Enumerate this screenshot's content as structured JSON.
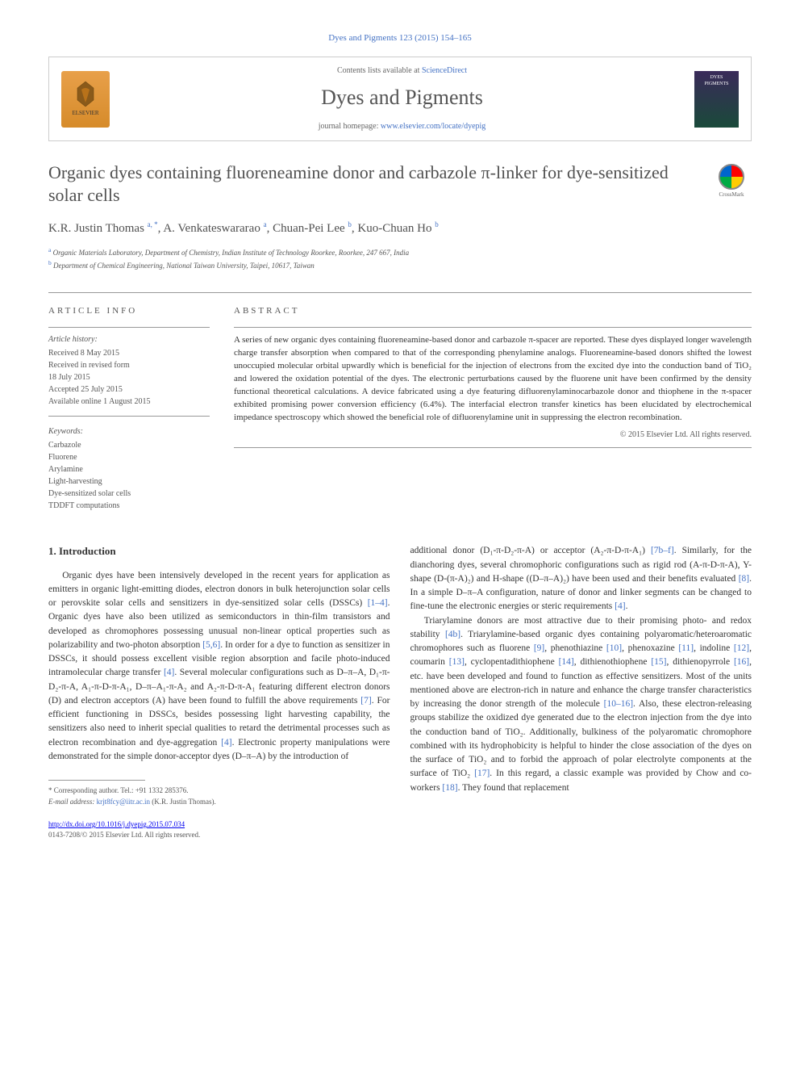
{
  "journal_ref": "Dyes and Pigments 123 (2015) 154–165",
  "header": {
    "publisher": "ELSEVIER",
    "contents_text": "Contents lists available at ",
    "contents_link": "ScienceDirect",
    "journal_name": "Dyes and Pigments",
    "homepage_text": "journal homepage: ",
    "homepage_link": "www.elsevier.com/locate/dyepig",
    "cover_label": "DYES PIGMENTS"
  },
  "article": {
    "title": "Organic dyes containing fluoreneamine donor and carbazole π-linker for dye-sensitized solar cells",
    "crossmark": "CrossMark",
    "authors_html": "K.R. Justin Thomas <sup>a, *</sup>, A. Venkateswararao <sup>a</sup>, Chuan-Pei Lee <sup>b</sup>, Kuo-Chuan Ho <sup>b</sup>",
    "affiliations": [
      {
        "sup": "a",
        "text": "Organic Materials Laboratory, Department of Chemistry, Indian Institute of Technology Roorkee, Roorkee, 247 667, India"
      },
      {
        "sup": "b",
        "text": "Department of Chemical Engineering, National Taiwan University, Taipei, 10617, Taiwan"
      }
    ]
  },
  "info": {
    "heading": "ARTICLE INFO",
    "history_label": "Article history:",
    "history": [
      "Received 8 May 2015",
      "Received in revised form",
      "18 July 2015",
      "Accepted 25 July 2015",
      "Available online 1 August 2015"
    ],
    "keywords_label": "Keywords:",
    "keywords": [
      "Carbazole",
      "Fluorene",
      "Arylamine",
      "Light-harvesting",
      "Dye-sensitized solar cells",
      "TDDFT computations"
    ]
  },
  "abstract": {
    "heading": "ABSTRACT",
    "text": "A series of new organic dyes containing fluoreneamine-based donor and carbazole π-spacer are reported. These dyes displayed longer wavelength charge transfer absorption when compared to that of the corresponding phenylamine analogs. Fluoreneamine-based donors shifted the lowest unoccupied molecular orbital upwardly which is beneficial for the injection of electrons from the excited dye into the conduction band of TiO₂ and lowered the oxidation potential of the dyes. The electronic perturbations caused by the fluorene unit have been confirmed by the density functional theoretical calculations. A device fabricated using a dye featuring difluorenylaminocarbazole donor and thiophene in the π-spacer exhibited promising power conversion efficiency (6.4%). The interfacial electron transfer kinetics has been elucidated by electrochemical impedance spectroscopy which showed the beneficial role of difluorenylamine unit in suppressing the electron recombination.",
    "copyright": "© 2015 Elsevier Ltd. All rights reserved."
  },
  "section1": {
    "heading": "1. Introduction",
    "para1": "Organic dyes have been intensively developed in the recent years for application as emitters in organic light-emitting diodes, electron donors in bulk heterojunction solar cells or perovskite solar cells and sensitizers in dye-sensitized solar cells (DSSCs) [1–4]. Organic dyes have also been utilized as semiconductors in thin-film transistors and developed as chromophores possessing unusual non-linear optical properties such as polarizability and two-photon absorption [5,6]. In order for a dye to function as sensitizer in DSSCs, it should possess excellent visible region absorption and facile photo-induced intramolecular charge transfer [4]. Several molecular configurations such as D–π–A, D₁-π-D₂-π-A, A₁-π-D-π-A₁, D–π–A₁-π-A₂ and A₂-π-D-π-A₁ featuring different electron donors (D) and electron acceptors (A) have been found to fulfill the above requirements [7]. For efficient functioning in DSSCs, besides possessing light harvesting capability, the sensitizers also need to inherit special qualities to retard the detrimental processes such as electron recombination and dye-aggregation [4]. Electronic property manipulations were demonstrated for the simple donor-acceptor dyes (D–π–A) by the introduction of",
    "para2": "additional donor (D₁-π-D₂-π-A) or acceptor (A₂-π-D-π-A₁) [7b–f]. Similarly, for the dianchoring dyes, several chromophoric configurations such as rigid rod (A-π-D-π-A), Y-shape (D-(π-A)₂) and H-shape ((D–π–A)₂) have been used and their benefits evaluated [8]. In a simple D–π–A configuration, nature of donor and linker segments can be changed to fine-tune the electronic energies or steric requirements [4].",
    "para3": "Triarylamine donors are most attractive due to their promising photo- and redox stability [4b]. Triarylamine-based organic dyes containing polyaromatic/heteroaromatic chromophores such as fluorene [9], phenothiazine [10], phenoxazine [11], indoline [12], coumarin [13], cyclopentadithiophene [14], dithienothiophene [15], dithienopyrrole [16], etc. have been developed and found to function as effective sensitizers. Most of the units mentioned above are electron-rich in nature and enhance the charge transfer characteristics by increasing the donor strength of the molecule [10–16]. Also, these electron-releasing groups stabilize the oxidized dye generated due to the electron injection from the dye into the conduction band of TiO₂. Additionally, bulkiness of the polyaromatic chromophore combined with its hydrophobicity is helpful to hinder the close association of the dyes on the surface of TiO₂ and to forbid the approach of polar electrolyte components at the surface of TiO₂ [17]. In this regard, a classic example was provided by Chow and co-workers [18]. They found that replacement"
  },
  "footer": {
    "corresponding_label": "* Corresponding author. Tel.: +91 1332 285376.",
    "email_label": "E-mail address: ",
    "email": "krjt8fcy@iitr.ac.in",
    "email_name": " (K.R. Justin Thomas).",
    "doi": "http://dx.doi.org/10.1016/j.dyepig.2015.07.034",
    "issn_copyright": "0143-7208/© 2015 Elsevier Ltd. All rights reserved."
  },
  "colors": {
    "link": "#4472c4",
    "text": "#333333",
    "heading_gray": "#505050",
    "muted": "#555555"
  }
}
